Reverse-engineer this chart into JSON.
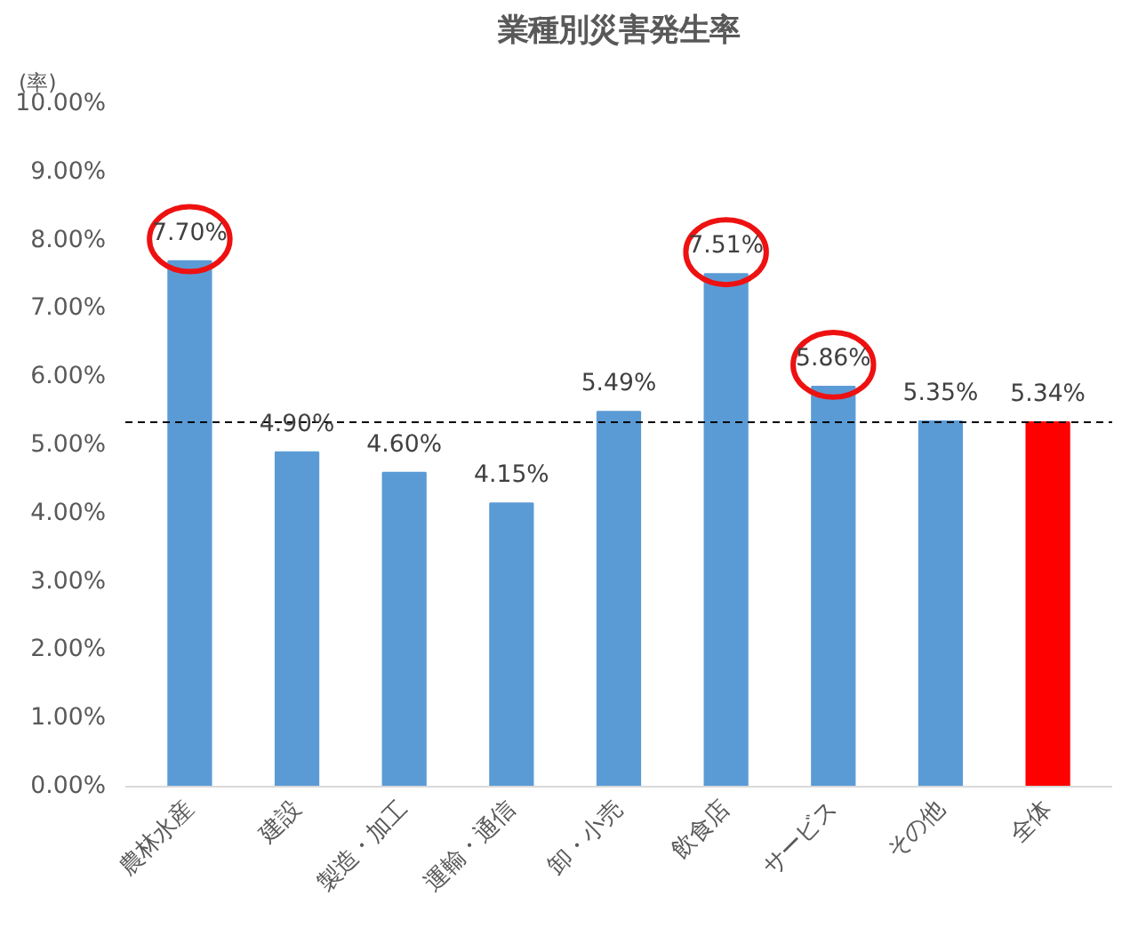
{
  "chart_data": {
    "type": "bar",
    "title": "業種別災害発生率",
    "ylabel": "(率)",
    "categories": [
      "農林水産",
      "建設",
      "製造・加工",
      "運輸・通信",
      "卸・小売",
      "飲食店",
      "サービス",
      "その他",
      "全体"
    ],
    "values": [
      7.7,
      4.9,
      4.6,
      4.15,
      5.49,
      7.51,
      5.86,
      5.35,
      5.34
    ],
    "colors": [
      "#5b9bd5",
      "#5b9bd5",
      "#5b9bd5",
      "#5b9bd5",
      "#5b9bd5",
      "#5b9bd5",
      "#5b9bd5",
      "#5b9bd5",
      "#ff0000"
    ],
    "value_labels": [
      null,
      "4.90%",
      "4.60%",
      "4.15%",
      "5.49%",
      null,
      null,
      "5.35%",
      "5.34%"
    ],
    "annotations": [
      {
        "text": "7.70%",
        "x": "農林水産",
        "y": 7.7
      },
      {
        "text": "7.51%",
        "x": "飲食店",
        "y": 7.51
      },
      {
        "text": "5.86%",
        "x": "サービス",
        "y": 5.86
      }
    ],
    "ylim": [
      0,
      10
    ],
    "yticks": [
      {
        "value": 0,
        "label": "0.00%"
      },
      {
        "value": 1,
        "label": "1.00%"
      },
      {
        "value": 2,
        "label": "2.00%"
      },
      {
        "value": 3,
        "label": "3.00%"
      },
      {
        "value": 4,
        "label": "4.00%"
      },
      {
        "value": 5,
        "label": "5.00%"
      },
      {
        "value": 6,
        "label": "6.00%"
      },
      {
        "value": 7,
        "label": "7.00%"
      },
      {
        "value": 8,
        "label": "8.00%"
      },
      {
        "value": 9,
        "label": "9.00%"
      },
      {
        "value": 10,
        "label": "10.00%"
      }
    ],
    "ref_lines": [
      {
        "axis": "y",
        "value": 5.34,
        "color": "#000000",
        "line_style": "dashed"
      }
    ],
    "grid": false
  }
}
